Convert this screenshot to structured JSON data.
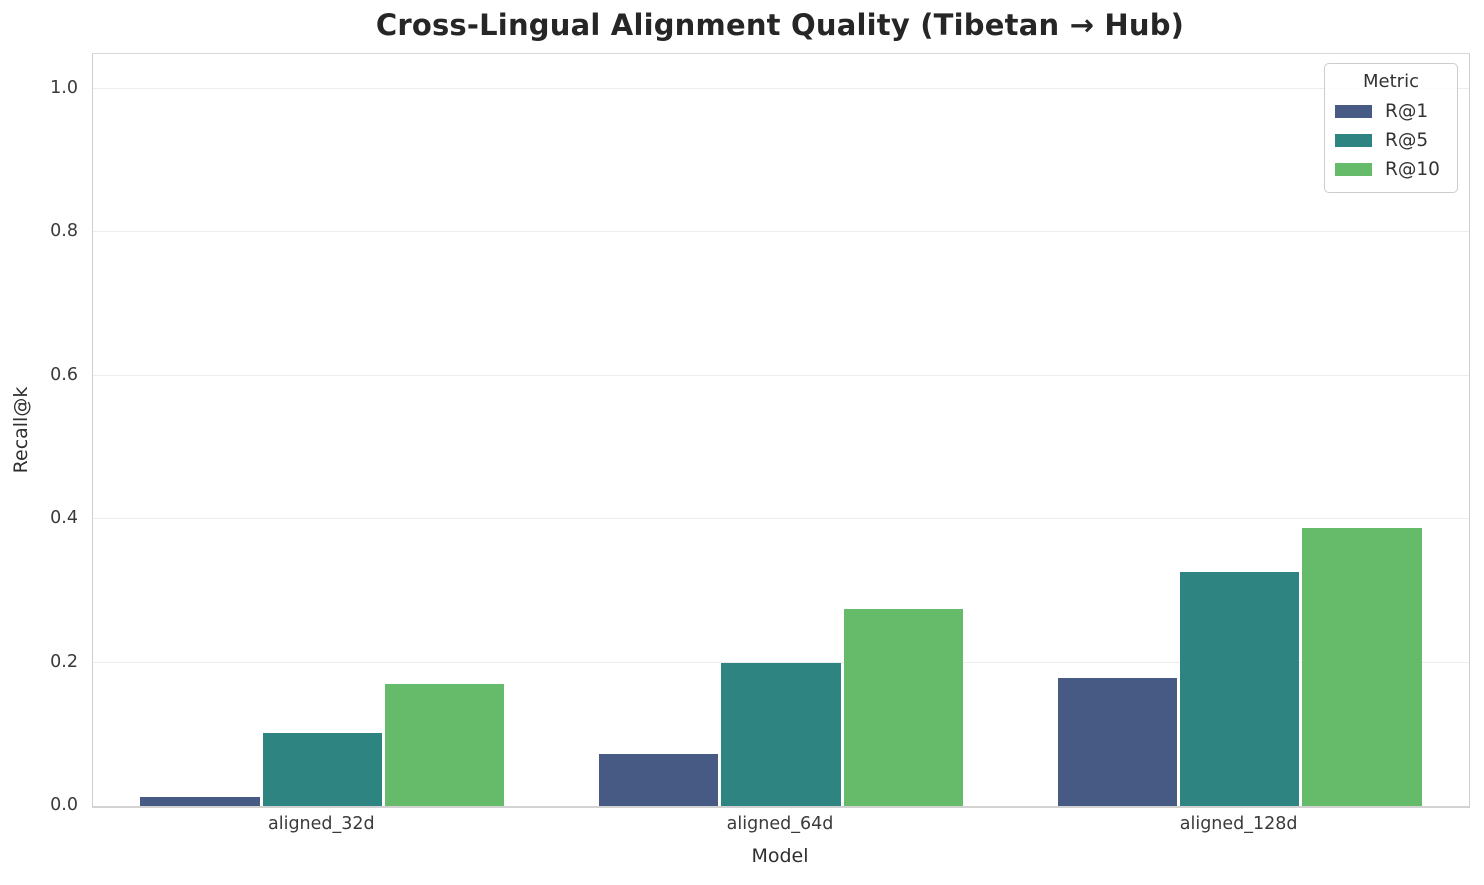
{
  "chart_data": {
    "type": "bar",
    "title": "Cross-Lingual Alignment Quality (Tibetan → Hub)",
    "xlabel": "Model",
    "ylabel": "Recall@k",
    "categories": [
      "aligned_32d",
      "aligned_64d",
      "aligned_128d"
    ],
    "series": [
      {
        "name": "R@1",
        "color": "#475a84",
        "values": [
          0.013,
          0.072,
          0.179
        ]
      },
      {
        "name": "R@5",
        "color": "#2d8480",
        "values": [
          0.102,
          0.2,
          0.327
        ]
      },
      {
        "name": "R@10",
        "color": "#66bb6a",
        "values": [
          0.17,
          0.275,
          0.388
        ]
      }
    ],
    "ylim": [
      0,
      1.05
    ],
    "yticks": [
      0.0,
      0.2,
      0.4,
      0.6,
      0.8,
      1.0
    ],
    "grid": true,
    "legend": {
      "title": "Metric",
      "position": "upper right"
    },
    "colors": {
      "gridline": "#ededed",
      "spine": "#d2d2d2",
      "title_text": "#262626",
      "tick_text": "#3a3a3a"
    }
  }
}
